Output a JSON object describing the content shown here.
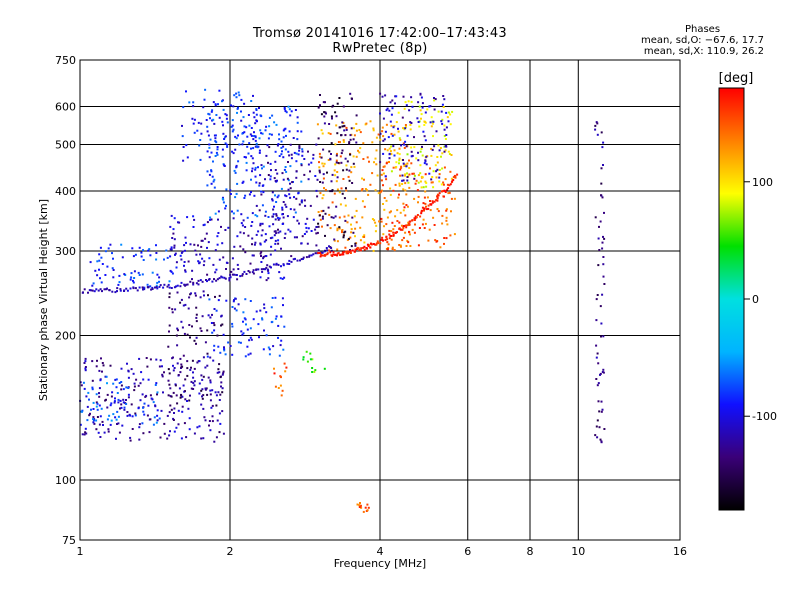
{
  "chart_data": {
    "type": "scatter",
    "title": "Tromsø 20141016 17:42:00–17:43:43",
    "subtitle": "RwPretec (8p)",
    "xlabel": "Frequency [MHz]",
    "ylabel": "Stationary phase Virtual Height [km]",
    "xscale": "log",
    "yscale": "log",
    "xlim": [
      1,
      16
    ],
    "ylim": [
      75,
      750
    ],
    "x_ticks": [
      1,
      2,
      4,
      6,
      8,
      10,
      16
    ],
    "y_ticks": [
      75,
      100,
      200,
      300,
      400,
      500,
      600,
      750
    ],
    "grid": true,
    "colorbar": {
      "label": "[deg]",
      "range": [
        -180,
        180
      ],
      "ticks": [
        -100,
        0,
        100
      ],
      "palette": [
        "#000000",
        "#3a0078",
        "#1010ff",
        "#00b4ff",
        "#00e0e0",
        "#00e000",
        "#ffff00",
        "#ff8000",
        "#ff0000"
      ]
    },
    "stats": {
      "header": "Phases",
      "line_o": "mean, sd,O: −67.6, 17.7",
      "line_x": "mean, sd,X: 110.9, 26.2"
    },
    "clusters": [
      {
        "f": [
          1.0,
          1.95
        ],
        "h": [
          120,
          180
        ],
        "phase": -120
      },
      {
        "f": [
          1.0,
          1.45
        ],
        "h": [
          130,
          165
        ],
        "phase": -75
      },
      {
        "f": [
          1.5,
          1.95
        ],
        "h": [
          140,
          250
        ],
        "phase": -135
      },
      {
        "f": [
          1.8,
          2.6
        ],
        "h": [
          180,
          240
        ],
        "phase": -85
      },
      {
        "f": [
          1.05,
          1.6
        ],
        "h": [
          250,
          310
        ],
        "phase": -80
      },
      {
        "f": [
          1.5,
          2.6
        ],
        "h": [
          260,
          360
        ],
        "phase": -110
      },
      {
        "f": [
          1.6,
          2.3
        ],
        "h": [
          460,
          650
        ],
        "phase": -85
      },
      {
        "f": [
          1.8,
          2.8
        ],
        "h": [
          350,
          600
        ],
        "phase": -80
      },
      {
        "f": [
          2.2,
          3.0
        ],
        "h": [
          290,
          500
        ],
        "phase": -115
      },
      {
        "f": [
          3.0,
          4.6
        ],
        "h": [
          300,
          560
        ],
        "phase": 130
      },
      {
        "f": [
          3.0,
          3.6
        ],
        "h": [
          300,
          640
        ],
        "phase": -145
      },
      {
        "f": [
          4.0,
          5.7
        ],
        "h": [
          300,
          460
        ],
        "phase": 150
      },
      {
        "f": [
          4.2,
          5.6
        ],
        "h": [
          400,
          620
        ],
        "phase": 95
      },
      {
        "f": [
          4.0,
          5.5
        ],
        "h": [
          420,
          640
        ],
        "phase": -110
      },
      {
        "f": [
          2.45,
          2.6
        ],
        "h": [
          150,
          175
        ],
        "phase": 150
      },
      {
        "f": [
          2.8,
          3.1
        ],
        "h": [
          160,
          185
        ],
        "phase": 55
      },
      {
        "f": [
          3.6,
          3.8
        ],
        "h": [
          85,
          90
        ],
        "phase": 145
      },
      {
        "f": [
          10.8,
          11.3
        ],
        "h": [
          110,
          600
        ],
        "phase": -130
      }
    ],
    "traces": [
      {
        "f": [
          1.0,
          3.2
        ],
        "h": [
          248,
          305
        ],
        "phase": -115
      },
      {
        "f": [
          3.0,
          5.7
        ],
        "h": [
          295,
          430
        ],
        "phase": 170
      }
    ]
  }
}
